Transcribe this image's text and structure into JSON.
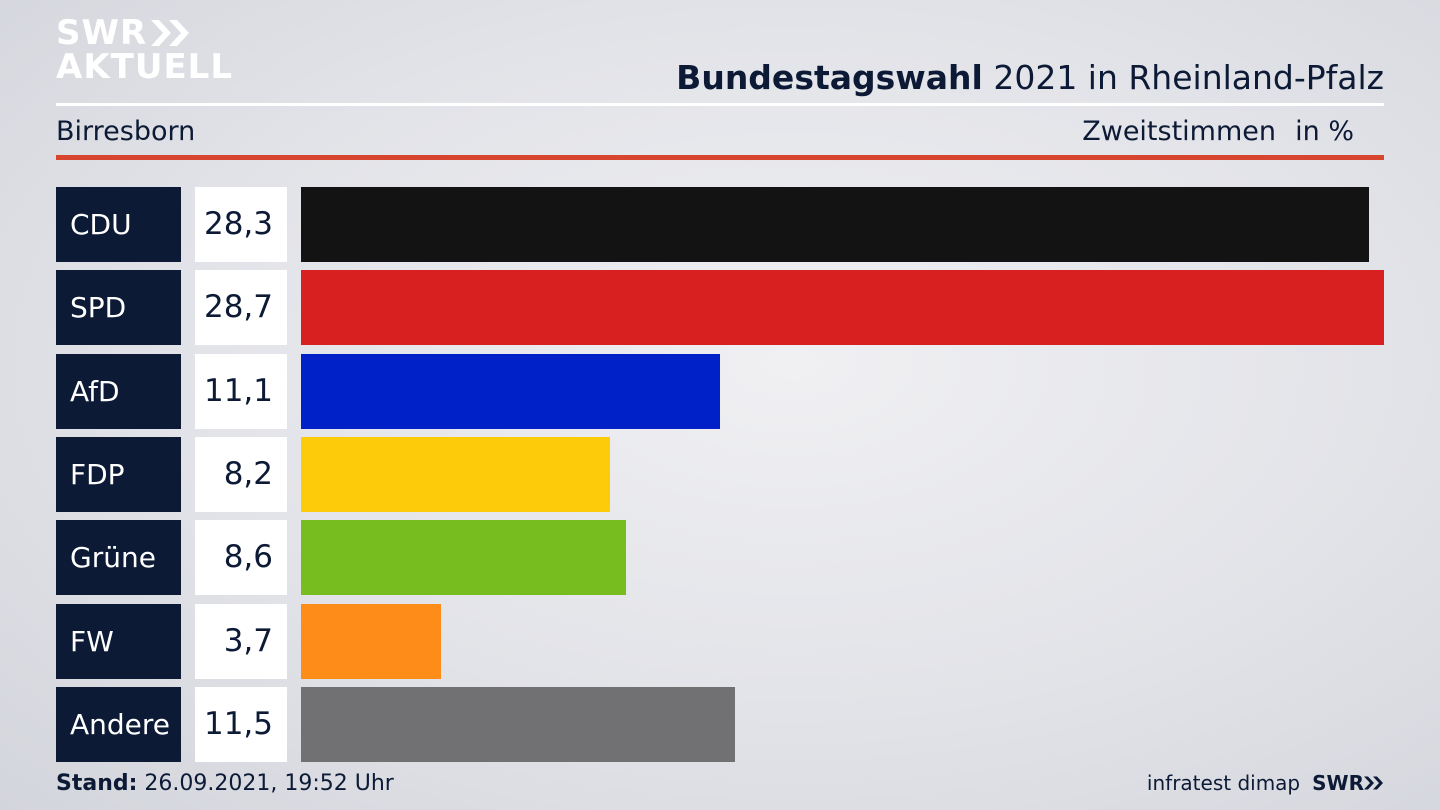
{
  "brand": {
    "line1": "SWR",
    "line2": "AKTUELL"
  },
  "header": {
    "title_bold": "Bundestagswahl",
    "title_rest": "2021 in Rheinland-Pfalz",
    "region": "Birresborn",
    "vote_type": "Zweitstimmen",
    "unit": "in %"
  },
  "chart_data": {
    "type": "bar",
    "orientation": "horizontal",
    "categories": [
      "CDU",
      "SPD",
      "AfD",
      "FDP",
      "Grüne",
      "FW",
      "Andere"
    ],
    "values": [
      28.3,
      28.7,
      11.1,
      8.2,
      8.6,
      3.7,
      11.5
    ],
    "value_labels": [
      "28,3",
      "28,7",
      "11,1",
      "8,2",
      "8,6",
      "3,7",
      "11,5"
    ],
    "colors": [
      "#131313",
      "#d7201f",
      "#0021c8",
      "#fecb0b",
      "#77bd1f",
      "#fd8c19",
      "#717174"
    ],
    "xlim": [
      0,
      28.7
    ],
    "grid": false
  },
  "footer": {
    "stand_label": "Stand:",
    "stand_value": "26.09.2021, 19:52 Uhr",
    "source": "infratest dimap",
    "source_brand": "SWR"
  }
}
